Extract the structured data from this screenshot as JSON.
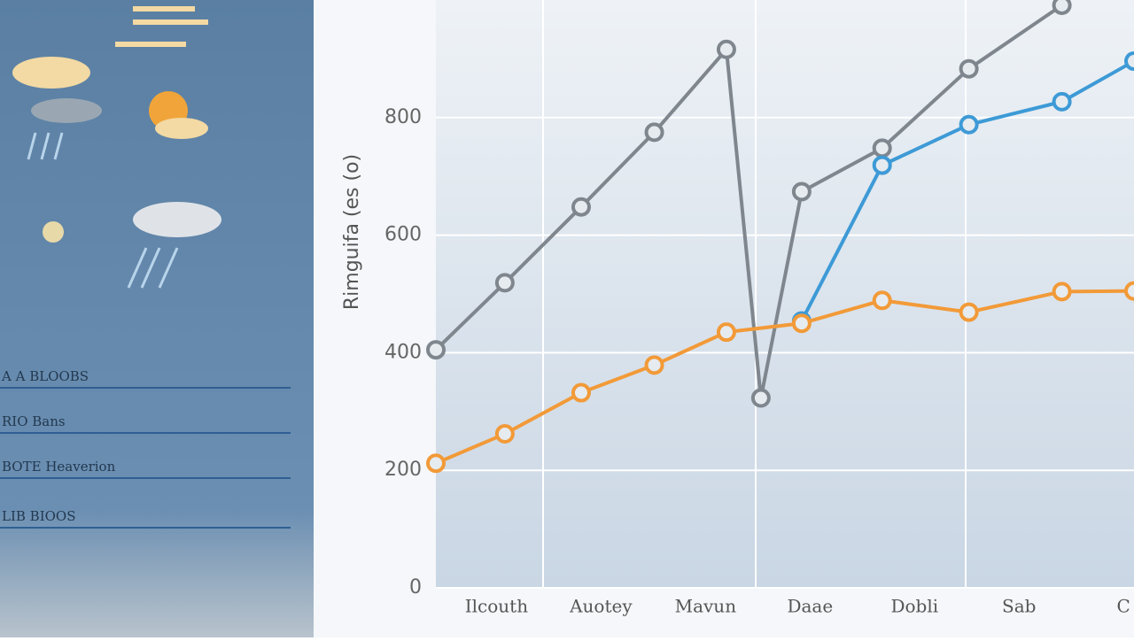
{
  "sidebar": {
    "items": [
      "A A BLOOBS",
      "RIO Bans",
      "BOTE Heaverion",
      "LIB BIOOS"
    ]
  },
  "chart_data": {
    "type": "line",
    "y_label": "Rimguifa (es (o)",
    "xlim": [
      0.42,
      7.1
    ],
    "ylim": [
      0,
      1000
    ],
    "xticks": [
      {
        "value": 1,
        "label": "Ilcouth"
      },
      {
        "value": 2,
        "label": "Auotey"
      },
      {
        "value": 3,
        "label": "Mavun"
      },
      {
        "value": 4,
        "label": "Daae"
      },
      {
        "value": 5,
        "label": "Dobli"
      },
      {
        "value": 6,
        "label": "Sab"
      },
      {
        "value": 7,
        "label": "C"
      }
    ],
    "yticks": [
      0,
      200,
      400,
      600,
      800
    ],
    "grid": true,
    "series": [
      {
        "color": "#7f868d",
        "x": [
          0.42,
          1.08,
          1.81,
          2.51,
          3.2,
          3.53,
          3.92,
          4.69,
          5.52,
          6.41
        ],
        "values": [
          405,
          519,
          648,
          775,
          916,
          323,
          674,
          748,
          883,
          991
        ]
      },
      {
        "color": "#3d9ad6",
        "x": [
          3.92,
          4.69,
          5.52,
          6.41,
          7.1
        ],
        "values": [
          454,
          719,
          788,
          827,
          896
        ]
      },
      {
        "color": "#f29a38",
        "x": [
          0.42,
          1.08,
          1.81,
          2.51,
          3.2,
          3.92,
          4.69,
          5.52,
          6.41,
          7.1
        ],
        "values": [
          212,
          262,
          332,
          379,
          435,
          450,
          489,
          469,
          504,
          505
        ]
      }
    ]
  }
}
